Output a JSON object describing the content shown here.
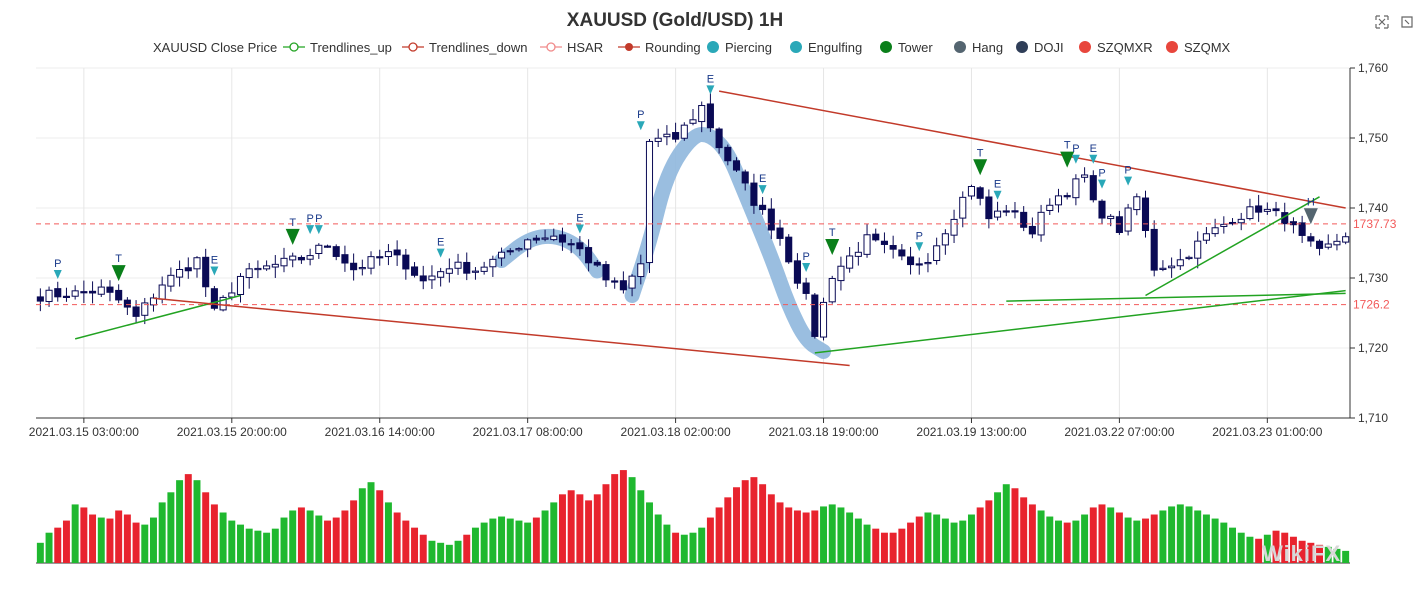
{
  "colors": {
    "up": "#0a0a55",
    "down": "#0a0a55",
    "vol_up": "#1fb82f",
    "vol_down": "#e8232e",
    "trend_up": "#22a322",
    "trend_down": "#c23a2a",
    "rounding": "#8fb7dd",
    "ref_line": "#f25a5a",
    "pattern_arrow": "#2aa8b8",
    "tower_arrow": "#0a7f1a",
    "hang_arrow": "#546570"
  },
  "toolbar": {
    "restore_icon": "restore-icon",
    "zoom_icon": "zoom-icon"
  },
  "legend": [
    {
      "label": "XAUUSD Close Price",
      "kind": "none",
      "color": ""
    },
    {
      "label": "Trendlines_up",
      "kind": "line-circle",
      "color": "#22a322"
    },
    {
      "label": "Trendlines_down",
      "kind": "line-circle",
      "color": "#c23a2a"
    },
    {
      "label": "HSAR",
      "kind": "line-circle",
      "color": "#f08a8a"
    },
    {
      "label": "Rounding",
      "kind": "line-dot",
      "color": "#c23a2a"
    },
    {
      "label": "Piercing",
      "kind": "dot",
      "color": "#2aa8b8"
    },
    {
      "label": "Engulfing",
      "kind": "dot",
      "color": "#2aa8b8"
    },
    {
      "label": "Tower",
      "kind": "dot",
      "color": "#0a7f1a"
    },
    {
      "label": "Hang",
      "kind": "dot",
      "color": "#546570"
    },
    {
      "label": "DOJI",
      "kind": "dot",
      "color": "#2f3e58"
    },
    {
      "label": "SZQMXR",
      "kind": "dot",
      "color": "#e8463c"
    },
    {
      "label": "SZQMX",
      "kind": "dot",
      "color": "#e8463c"
    }
  ],
  "watermark": "WikiFX",
  "chart_data": {
    "type": "candlestick",
    "title": "XAUUSD (Gold/USD) 1H",
    "ylim": [
      1710,
      1760
    ],
    "y_ticks": [
      1710,
      1720,
      1730,
      1740,
      1750,
      1760
    ],
    "y_tick_labels": [
      "1,710",
      "1,720",
      "1,730",
      "1,740",
      "1,750",
      "1,760"
    ],
    "x_tick_labels": [
      {
        "index": 5,
        "label": "2021.03.15 03:00:00"
      },
      {
        "index": 22,
        "label": "2021.03.15 20:00:00"
      },
      {
        "index": 39,
        "label": "2021.03.16 14:00:00"
      },
      {
        "index": 56,
        "label": "2021.03.17 08:00:00"
      },
      {
        "index": 73,
        "label": "2021.03.18 02:00:00"
      },
      {
        "index": 90,
        "label": "2021.03.18 19:00:00"
      },
      {
        "index": 107,
        "label": "2021.03.19 13:00:00"
      },
      {
        "index": 124,
        "label": "2021.03.22 07:00:00"
      },
      {
        "index": 141,
        "label": "2021.03.23 01:00:00"
      }
    ],
    "series_name": "XAUUSD Close Price",
    "anchors": [
      [
        0,
        1727.5
      ],
      [
        4,
        1727.8
      ],
      [
        7,
        1728.3
      ],
      [
        9,
        1726.8
      ],
      [
        11,
        1724.3
      ],
      [
        14,
        1729.2
      ],
      [
        18,
        1732.6
      ],
      [
        20,
        1725.0
      ],
      [
        23,
        1730.2
      ],
      [
        26,
        1731.5
      ],
      [
        30,
        1732.8
      ],
      [
        33,
        1734.8
      ],
      [
        36,
        1731.3
      ],
      [
        40,
        1733.4
      ],
      [
        42,
        1732.0
      ],
      [
        44,
        1729.5
      ],
      [
        47,
        1731.8
      ],
      [
        50,
        1731.2
      ],
      [
        53,
        1733.0
      ],
      [
        56,
        1735.6
      ],
      [
        59,
        1736.1
      ],
      [
        62,
        1734.0
      ],
      [
        65,
        1729.8
      ],
      [
        67,
        1728.1
      ],
      [
        69,
        1732.0
      ],
      [
        70,
        1749.5
      ],
      [
        73,
        1750.0
      ],
      [
        76,
        1754.5
      ],
      [
        78,
        1748.9
      ],
      [
        82,
        1741.0
      ],
      [
        85,
        1735.8
      ],
      [
        88,
        1727.0
      ],
      [
        89,
        1722.1
      ],
      [
        91,
        1730.5
      ],
      [
        95,
        1735.5
      ],
      [
        98,
        1733.5
      ],
      [
        100,
        1731.5
      ],
      [
        102,
        1733.0
      ],
      [
        104,
        1737.0
      ],
      [
        107,
        1743.5
      ],
      [
        109,
        1738.5
      ],
      [
        111,
        1740.0
      ],
      [
        114,
        1736.5
      ],
      [
        116,
        1741.0
      ],
      [
        118,
        1742.5
      ],
      [
        120,
        1744.5
      ],
      [
        121,
        1740.5
      ],
      [
        124,
        1737.0
      ],
      [
        126,
        1741.5
      ],
      [
        128,
        1731.5
      ],
      [
        131,
        1732.5
      ],
      [
        134,
        1736.0
      ],
      [
        137,
        1738.5
      ],
      [
        140,
        1740.0
      ],
      [
        143,
        1738.5
      ],
      [
        145,
        1735.5
      ],
      [
        147,
        1733.5
      ],
      [
        150,
        1736.3
      ]
    ],
    "volume_profile": [
      20,
      30,
      35,
      42,
      58,
      55,
      48,
      45,
      44,
      52,
      48,
      40,
      38,
      45,
      60,
      70,
      82,
      88,
      82,
      70,
      58,
      50,
      42,
      38,
      34,
      32,
      30,
      34,
      45,
      52,
      55,
      52,
      47,
      42,
      45,
      52,
      62,
      74,
      80,
      72,
      60,
      50,
      42,
      35,
      28,
      22,
      20,
      18,
      22,
      28,
      35,
      40,
      44,
      46,
      44,
      42,
      40,
      45,
      52,
      60,
      68,
      72,
      68,
      62,
      68,
      78,
      88,
      92,
      85,
      72,
      60,
      48,
      38,
      30,
      28,
      30,
      35,
      45,
      55,
      65,
      75,
      82,
      85,
      78,
      68,
      60,
      55,
      52,
      50,
      52,
      56,
      58,
      55,
      50,
      44,
      38,
      34,
      30,
      30,
      34,
      40,
      46,
      50,
      48,
      44,
      40,
      42,
      48,
      55,
      62,
      70,
      78,
      74,
      65,
      58,
      52,
      46,
      42,
      40,
      42,
      48,
      55,
      58,
      55,
      50,
      45,
      42,
      44,
      48,
      52,
      56,
      58,
      56,
      52,
      48,
      44,
      40,
      35,
      30,
      26,
      24,
      28,
      32,
      30,
      26,
      22,
      20,
      18,
      16,
      14,
      12
    ],
    "trendlines_up": [
      [
        [
          4,
          1721.3
        ],
        [
          23,
          1727.5
        ]
      ],
      [
        [
          89,
          1719.3
        ],
        [
          150,
          1728.2
        ]
      ],
      [
        [
          111,
          1726.7
        ],
        [
          150,
          1727.8
        ]
      ],
      [
        [
          127,
          1727.5
        ],
        [
          147,
          1741.6
        ]
      ]
    ],
    "trendlines_down": [
      [
        [
          13,
          1727.1
        ],
        [
          93,
          1717.5
        ]
      ],
      [
        [
          78,
          1756.7
        ],
        [
          150,
          1740.0
        ]
      ]
    ],
    "hsar_levels": [
      {
        "value": 1737.73,
        "label": "1737.73"
      },
      {
        "value": 1726.2,
        "label": "1726.2"
      }
    ],
    "rounding": [
      {
        "x": [
          53,
          56,
          59,
          62,
          64
        ],
        "y": [
          1732.5,
          1735.5,
          1736.2,
          1734.5,
          1731.0
        ]
      },
      {
        "x": [
          68,
          70,
          72,
          75,
          77,
          79,
          81,
          84,
          86,
          88,
          90
        ],
        "y": [
          1727.5,
          1735.0,
          1745.0,
          1750.5,
          1750.5,
          1748.0,
          1742.0,
          1733.0,
          1726.0,
          1721.0,
          1719.5
        ]
      }
    ],
    "patterns": [
      {
        "i": 2,
        "type": "Piercing",
        "text": "P"
      },
      {
        "i": 9,
        "type": "Tower",
        "text": "T"
      },
      {
        "i": 20,
        "type": "Engulfing",
        "text": "E"
      },
      {
        "i": 29,
        "type": "Tower",
        "text": "T"
      },
      {
        "i": 31,
        "type": "Piercing",
        "text": "P"
      },
      {
        "i": 32,
        "type": "Piercing",
        "text": "P"
      },
      {
        "i": 46,
        "type": "Engulfing",
        "text": "E"
      },
      {
        "i": 62,
        "type": "Engulfing",
        "text": "E"
      },
      {
        "i": 69,
        "type": "Piercing",
        "text": "P"
      },
      {
        "i": 77,
        "type": "Engulfing",
        "text": "E"
      },
      {
        "i": 83,
        "type": "Engulfing",
        "text": "E"
      },
      {
        "i": 88,
        "type": "Piercing",
        "text": "P"
      },
      {
        "i": 91,
        "type": "Tower",
        "text": "T"
      },
      {
        "i": 101,
        "type": "Piercing",
        "text": "P"
      },
      {
        "i": 108,
        "type": "Tower",
        "text": "T"
      },
      {
        "i": 110,
        "type": "Engulfing",
        "text": "E"
      },
      {
        "i": 118,
        "type": "Tower",
        "text": "T"
      },
      {
        "i": 119,
        "type": "Piercing",
        "text": "P"
      },
      {
        "i": 121,
        "type": "Engulfing",
        "text": "E"
      },
      {
        "i": 122,
        "type": "Piercing",
        "text": "P"
      },
      {
        "i": 125,
        "type": "Piercing",
        "text": "P"
      },
      {
        "i": 146,
        "type": "Hang",
        "text": "H"
      }
    ]
  }
}
